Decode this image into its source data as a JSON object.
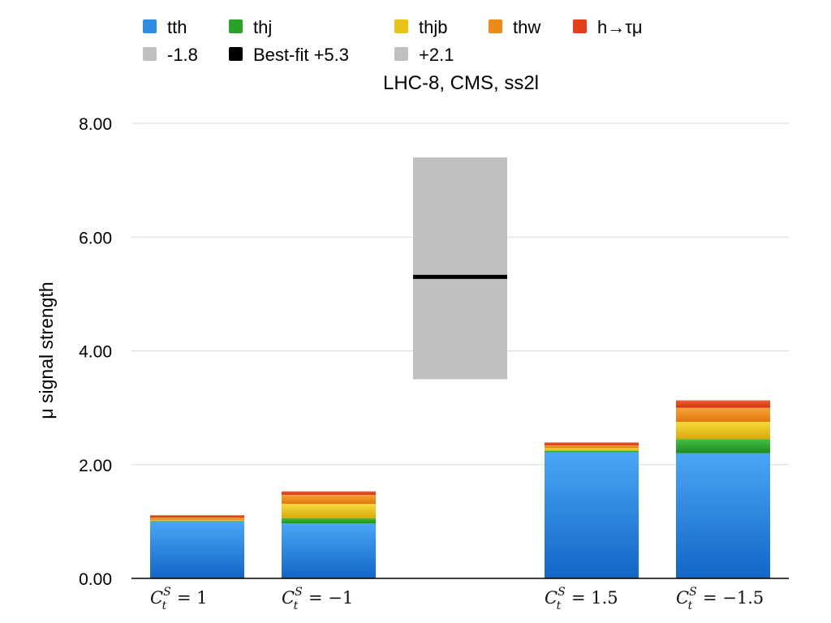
{
  "chart_data": {
    "type": "bar",
    "stacked": true,
    "title": "LHC-8, CMS, ss2l",
    "xlabel": "",
    "ylabel": "μ signal strength",
    "ylim": [
      0,
      8
    ],
    "yticks": [
      "0.00",
      "2.00",
      "4.00",
      "6.00",
      "8.00"
    ],
    "ytick_values": [
      0,
      2,
      4,
      6,
      8
    ],
    "grid": true,
    "legend_position": "top",
    "category_slots": 5,
    "categories": [
      {
        "slot": 0,
        "base": "C",
        "sup": "S",
        "sub": "t",
        "rest": " = 1"
      },
      {
        "slot": 1,
        "base": "C",
        "sup": "S",
        "sub": "t",
        "rest": " = −1"
      },
      {
        "slot": 3,
        "base": "C",
        "sup": "S",
        "sub": "t",
        "rest": " = 1.5"
      },
      {
        "slot": 4,
        "base": "C",
        "sup": "S",
        "sub": "t",
        "rest": " = −1.5"
      }
    ],
    "series": [
      {
        "name": "tth",
        "color": "#2f8de4",
        "values": [
          1.0,
          0.97,
          2.22,
          2.2
        ]
      },
      {
        "name": "thj",
        "color": "#2aa22a",
        "values": [
          0.01,
          0.09,
          0.02,
          0.25
        ]
      },
      {
        "name": "thjb",
        "color": "#e8c31a",
        "values": [
          0.02,
          0.25,
          0.05,
          0.3
        ]
      },
      {
        "name": "thw",
        "color": "#ee8a1a",
        "values": [
          0.04,
          0.16,
          0.05,
          0.25
        ]
      },
      {
        "name": "h→τμ",
        "color": "#e2401c",
        "values": [
          0.04,
          0.06,
          0.05,
          0.13
        ]
      }
    ],
    "measurement": {
      "slot": 2,
      "best_fit": 5.3,
      "low": 3.5,
      "high": 7.4,
      "band_color": "#c0c0c0",
      "line_color": "#000000"
    },
    "legend": [
      {
        "label": "tth",
        "color": "#2f8de4"
      },
      {
        "label": "thj",
        "color": "#2aa22a"
      },
      {
        "label": "thjb",
        "color": "#e8c31a"
      },
      {
        "label": "thw",
        "color": "#ee8a1a"
      },
      {
        "label": "h→τμ",
        "color": "#e2401c"
      },
      {
        "label": "-1.8",
        "color": "#c0c0c0"
      },
      {
        "label": "Best-fit +5.3",
        "color": "#000000"
      },
      {
        "label": "+2.1",
        "color": "#c0c0c0"
      }
    ]
  }
}
